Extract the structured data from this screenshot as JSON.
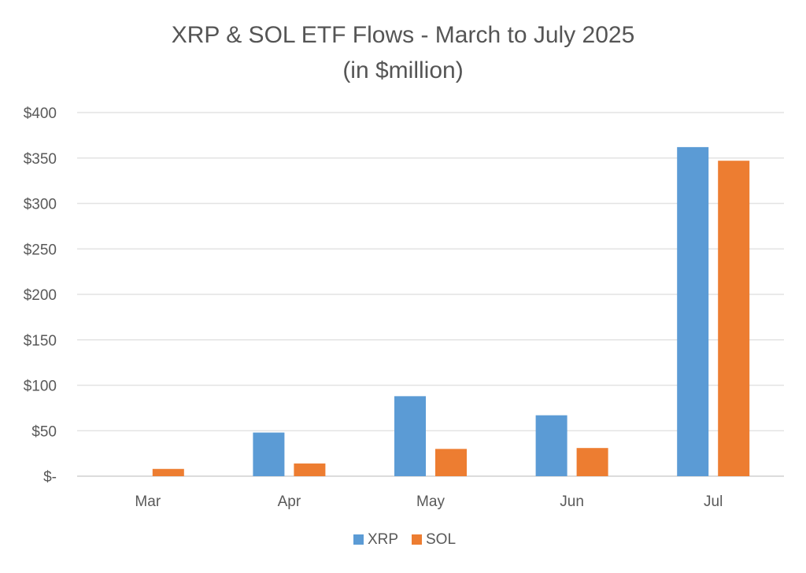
{
  "chart_data": {
    "type": "bar",
    "title": "XRP & SOL ETF Flows - March to July 2025",
    "subtitle": "(in $million)",
    "categories": [
      "Mar",
      "Apr",
      "May",
      "Jun",
      "Jul"
    ],
    "series": [
      {
        "name": "XRP",
        "color": "#5b9bd5",
        "values": [
          0,
          48,
          88,
          67,
          362
        ]
      },
      {
        "name": "SOL",
        "color": "#ed7d31",
        "values": [
          8,
          14,
          30,
          31,
          347
        ]
      }
    ],
    "ylim": [
      0,
      400
    ],
    "y_ticks": [
      0,
      50,
      100,
      150,
      200,
      250,
      300,
      350,
      400
    ],
    "y_tick_labels": [
      "$-",
      "$50",
      "$100",
      "$150",
      "$200",
      "$250",
      "$300",
      "$350",
      "$400"
    ],
    "grid": true,
    "legend_position": "bottom"
  }
}
